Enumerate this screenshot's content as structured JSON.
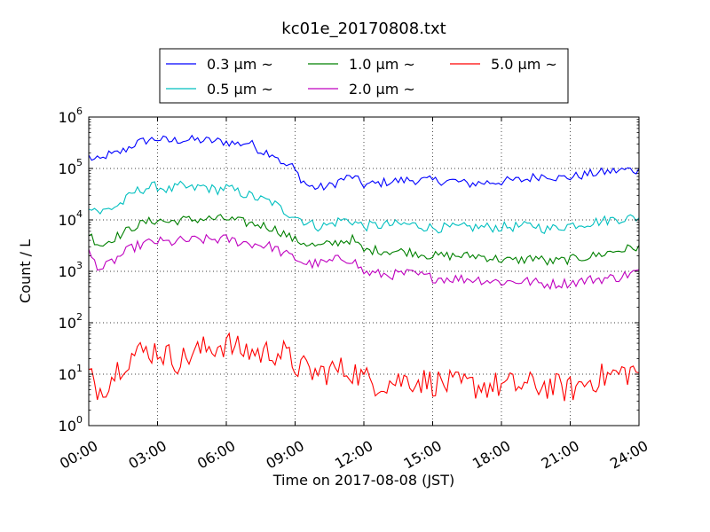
{
  "chart_data": {
    "type": "line",
    "title": "kc01e_20170808.txt",
    "xlabel": "Time on 2017-08-08 (JST)",
    "ylabel": "Count / L",
    "yscale": "log",
    "ylim_exp": [
      0,
      6
    ],
    "xlim_hours": [
      0,
      24
    ],
    "grid": true,
    "legend_position": "top (outside, above plot)",
    "x_tick_labels": [
      "00:00",
      "03:00",
      "06:00",
      "09:00",
      "12:00",
      "15:00",
      "18:00",
      "21:00",
      "24:00"
    ],
    "y_tick_base": "10",
    "y_tick_exponents": [
      "0",
      "1",
      "2",
      "3",
      "4",
      "5",
      "6"
    ],
    "sample_interval_hours": 0.125,
    "series": [
      {
        "name": "0.3 µm ~",
        "color": "#0000ff",
        "anchors": [
          [
            0,
            170000
          ],
          [
            0.3,
            140000
          ],
          [
            0.6,
            150000
          ],
          [
            0.8,
            190000
          ],
          [
            1,
            180000
          ],
          [
            1.5,
            220000
          ],
          [
            2,
            300000
          ],
          [
            2.5,
            350000
          ],
          [
            3,
            380000
          ],
          [
            3.5,
            340000
          ],
          [
            4,
            360000
          ],
          [
            4.5,
            360000
          ],
          [
            5,
            350000
          ],
          [
            5.5,
            340000
          ],
          [
            6,
            330000
          ],
          [
            6.5,
            300000
          ],
          [
            7,
            320000
          ],
          [
            7.5,
            220000
          ],
          [
            8,
            200000
          ],
          [
            8.3,
            160000
          ],
          [
            8.5,
            110000
          ],
          [
            8.8,
            120000
          ],
          [
            9,
            90000
          ],
          [
            9.3,
            60000
          ],
          [
            9.6,
            45000
          ],
          [
            10,
            42000
          ],
          [
            10.5,
            45000
          ],
          [
            11,
            60000
          ],
          [
            11.5,
            70000
          ],
          [
            12,
            48000
          ],
          [
            12.5,
            50000
          ],
          [
            13,
            55000
          ],
          [
            14,
            60000
          ],
          [
            15,
            58000
          ],
          [
            16,
            57000
          ],
          [
            16.5,
            50000
          ],
          [
            17,
            52000
          ],
          [
            18,
            56000
          ],
          [
            19,
            60000
          ],
          [
            19.5,
            70000
          ],
          [
            20,
            75000
          ],
          [
            20.5,
            65000
          ],
          [
            21,
            68000
          ],
          [
            22,
            80000
          ],
          [
            23,
            90000
          ],
          [
            23.5,
            95000
          ],
          [
            24,
            90000
          ]
        ],
        "noise": 0.09
      },
      {
        "name": "0.5 µm ~",
        "color": "#00bfbf",
        "anchors": [
          [
            0,
            20000
          ],
          [
            0.5,
            14000
          ],
          [
            1,
            17000
          ],
          [
            1.5,
            22000
          ],
          [
            2,
            35000
          ],
          [
            2.5,
            42000
          ],
          [
            3,
            45000
          ],
          [
            3.5,
            38000
          ],
          [
            4,
            45000
          ],
          [
            4.5,
            40000
          ],
          [
            5,
            45000
          ],
          [
            5.5,
            38000
          ],
          [
            6,
            42000
          ],
          [
            6.5,
            35000
          ],
          [
            7,
            30000
          ],
          [
            7.5,
            25000
          ],
          [
            8,
            22000
          ],
          [
            8.5,
            15000
          ],
          [
            9,
            12000
          ],
          [
            9.5,
            9000
          ],
          [
            10,
            7500
          ],
          [
            10.5,
            8000
          ],
          [
            11,
            10000
          ],
          [
            11.5,
            9500
          ],
          [
            12,
            7500
          ],
          [
            13,
            8000
          ],
          [
            14,
            8200
          ],
          [
            15,
            7000
          ],
          [
            16,
            7000
          ],
          [
            17,
            7200
          ],
          [
            18,
            7200
          ],
          [
            19,
            7500
          ],
          [
            19.5,
            7800
          ],
          [
            20,
            6500
          ],
          [
            21,
            8000
          ],
          [
            22,
            9000
          ],
          [
            23,
            10500
          ],
          [
            24,
            11000
          ]
        ],
        "noise": 0.1
      },
      {
        "name": "1.0 µm ~",
        "color": "#008000",
        "anchors": [
          [
            0,
            5500
          ],
          [
            0.3,
            3800
          ],
          [
            0.6,
            3200
          ],
          [
            1,
            4300
          ],
          [
            1.5,
            5500
          ],
          [
            2,
            7500
          ],
          [
            2.5,
            9000
          ],
          [
            3,
            10000
          ],
          [
            3.5,
            9000
          ],
          [
            4,
            10000
          ],
          [
            4.5,
            10000
          ],
          [
            5,
            10500
          ],
          [
            5.5,
            10500
          ],
          [
            6,
            10500
          ],
          [
            6.5,
            9500
          ],
          [
            7,
            8500
          ],
          [
            7.5,
            8000
          ],
          [
            8,
            7000
          ],
          [
            8.5,
            5500
          ],
          [
            9,
            4000
          ],
          [
            9.5,
            3500
          ],
          [
            10,
            3000
          ],
          [
            11,
            3800
          ],
          [
            11.5,
            4200
          ],
          [
            12,
            2500
          ],
          [
            12.5,
            2600
          ],
          [
            13,
            2500
          ],
          [
            14,
            2400
          ],
          [
            15,
            2000
          ],
          [
            16,
            2000
          ],
          [
            17,
            2000
          ],
          [
            18,
            1700
          ],
          [
            18.5,
            1600
          ],
          [
            19,
            1700
          ],
          [
            19.5,
            1900
          ],
          [
            20,
            1500
          ],
          [
            21,
            1700
          ],
          [
            22,
            2000
          ],
          [
            23,
            2500
          ],
          [
            24,
            3000
          ]
        ],
        "noise": 0.09
      },
      {
        "name": "2.0 µm ~",
        "color": "#bf00bf",
        "anchors": [
          [
            0,
            2300
          ],
          [
            0.3,
            1400
          ],
          [
            0.6,
            1100
          ],
          [
            1,
            1500
          ],
          [
            1.5,
            2200
          ],
          [
            2,
            3000
          ],
          [
            2.5,
            3500
          ],
          [
            3,
            3800
          ],
          [
            3.5,
            3600
          ],
          [
            4,
            3900
          ],
          [
            4.5,
            4000
          ],
          [
            5,
            4100
          ],
          [
            5.5,
            4200
          ],
          [
            6,
            4200
          ],
          [
            6.5,
            3800
          ],
          [
            7,
            3500
          ],
          [
            7.5,
            3300
          ],
          [
            8,
            3000
          ],
          [
            8.5,
            2200
          ],
          [
            9,
            1800
          ],
          [
            9.5,
            1400
          ],
          [
            10,
            1400
          ],
          [
            10.5,
            1500
          ],
          [
            11,
            1800
          ],
          [
            11.5,
            1700
          ],
          [
            12,
            950
          ],
          [
            12.5,
            900
          ],
          [
            13,
            850
          ],
          [
            14,
            900
          ],
          [
            15,
            750
          ],
          [
            16,
            720
          ],
          [
            17,
            700
          ],
          [
            18,
            620
          ],
          [
            19,
            650
          ],
          [
            20,
            560
          ],
          [
            21,
            600
          ],
          [
            22,
            700
          ],
          [
            23,
            750
          ],
          [
            24,
            1000
          ]
        ],
        "noise": 0.1
      },
      {
        "name": "5.0 µm ~",
        "color": "#ff0000",
        "anchors": [
          [
            0,
            9
          ],
          [
            0.5,
            5
          ],
          [
            1,
            9
          ],
          [
            1.5,
            18
          ],
          [
            2,
            25
          ],
          [
            3,
            30
          ],
          [
            3.5,
            22
          ],
          [
            4,
            18
          ],
          [
            4.5,
            25
          ],
          [
            5,
            30
          ],
          [
            5.5,
            35
          ],
          [
            6,
            40
          ],
          [
            6.5,
            30
          ],
          [
            7,
            28
          ],
          [
            7.5,
            25
          ],
          [
            8,
            28
          ],
          [
            8.5,
            25
          ],
          [
            9,
            15
          ],
          [
            9.5,
            12
          ],
          [
            10,
            10
          ],
          [
            10.5,
            12
          ],
          [
            11,
            12
          ],
          [
            11.5,
            12
          ],
          [
            12,
            8
          ],
          [
            12.5,
            7
          ],
          [
            13,
            7
          ],
          [
            14,
            8
          ],
          [
            15,
            7
          ],
          [
            16,
            6
          ],
          [
            17,
            6
          ],
          [
            18,
            6
          ],
          [
            19,
            6
          ],
          [
            20,
            6
          ],
          [
            21,
            5
          ],
          [
            22,
            8
          ],
          [
            23,
            10
          ],
          [
            24,
            12
          ]
        ],
        "noise": 0.28
      }
    ]
  }
}
